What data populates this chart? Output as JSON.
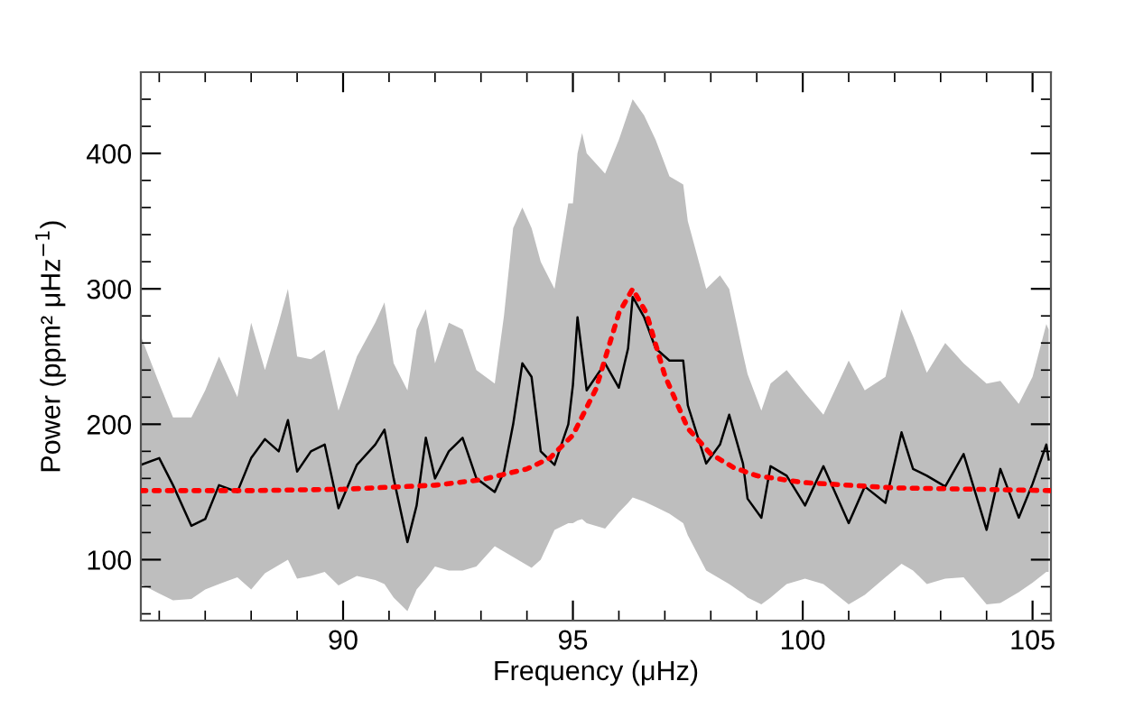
{
  "chart_data": {
    "type": "line",
    "xlabel": "Frequency (μHz)",
    "ylabel": "Power (ppm² μHz$^{−1}$)",
    "xlim": [
      85.6,
      105.4
    ],
    "ylim": [
      55,
      460
    ],
    "xticks": [
      90,
      95,
      100,
      105
    ],
    "yticks": [
      100,
      200,
      300,
      400
    ],
    "grid": false,
    "series": [
      {
        "color": "#000000",
        "line_style": "solid",
        "x": [
          85.6,
          86.0,
          86.3,
          86.7,
          87.0,
          87.3,
          87.7,
          88.0,
          88.3,
          88.6,
          88.8,
          89.0,
          89.3,
          89.6,
          89.9,
          90.3,
          90.7,
          90.9,
          91.1,
          91.4,
          91.6,
          91.8,
          92.0,
          92.3,
          92.6,
          92.9,
          93.3,
          93.5,
          93.7,
          93.9,
          94.1,
          94.3,
          94.6,
          94.9,
          95.0,
          95.1,
          95.2,
          95.3,
          95.7,
          96.0,
          96.2,
          96.3,
          96.55,
          96.8,
          97.1,
          97.4,
          97.5,
          97.9,
          98.2,
          98.4,
          98.7,
          98.8,
          99.1,
          99.3,
          99.65,
          100.05,
          100.45,
          101.0,
          101.35,
          101.8,
          102.15,
          102.4,
          102.7,
          103.1,
          103.5,
          104.0,
          104.3,
          104.7,
          105.0,
          105.3,
          105.35
        ],
        "values": [
          170,
          175,
          155,
          125,
          130,
          155,
          150,
          175,
          189,
          180,
          203,
          165,
          180,
          185,
          138,
          170,
          185,
          196,
          160,
          113,
          140,
          190,
          160,
          180,
          190,
          160,
          150,
          165,
          200,
          245,
          235,
          180,
          170,
          200,
          229,
          279,
          252,
          225,
          245,
          227,
          256,
          294,
          279,
          256,
          247,
          247,
          214,
          171,
          185,
          207,
          171,
          145,
          131,
          169,
          162,
          140,
          169,
          127,
          154,
          142,
          194,
          167,
          162,
          154,
          178,
          122,
          167,
          131,
          156,
          185,
          174
        ],
        "lower": [
          82,
          75,
          70,
          71,
          78,
          82,
          87,
          78,
          90,
          96,
          100,
          86,
          88,
          91,
          81,
          88,
          85,
          82,
          72,
          62,
          78,
          86,
          95,
          92,
          92,
          95,
          110,
          106,
          102,
          98,
          94,
          100,
          122,
          127,
          127,
          129,
          130,
          127,
          123,
          135,
          142,
          146,
          143,
          139,
          134,
          127,
          118,
          92,
          86,
          82,
          75,
          72,
          67,
          72,
          82,
          86,
          82,
          67,
          74,
          87,
          97,
          92,
          82,
          86,
          87,
          67,
          68,
          76,
          83,
          91,
          91
        ],
        "upper": [
          265,
          230,
          205,
          205,
          225,
          250,
          220,
          275,
          240,
          275,
          300,
          250,
          248,
          255,
          210,
          250,
          275,
          290,
          245,
          225,
          270,
          285,
          245,
          275,
          270,
          240,
          230,
          280,
          345,
          360,
          345,
          320,
          300,
          363,
          363,
          400,
          415,
          400,
          385,
          410,
          430,
          440,
          428,
          410,
          383,
          377,
          350,
          300,
          310,
          300,
          252,
          237,
          210,
          230,
          240,
          223,
          207,
          247,
          225,
          235,
          285,
          265,
          238,
          260,
          245,
          230,
          232,
          215,
          235,
          274,
          270
        ]
      },
      {
        "color": "#ff0000",
        "line_style": "dotted",
        "x": [
          85.6,
          88,
          90,
          92,
          93,
          94,
          94.5,
          95,
          95.5,
          96,
          96.3,
          96.6,
          97,
          97.5,
          98,
          98.5,
          99,
          100,
          102,
          105.4
        ],
        "values": [
          151,
          151,
          152,
          155,
          159,
          167,
          175,
          192,
          226,
          282,
          300,
          282,
          236,
          197,
          178,
          168,
          162,
          157,
          153,
          151
        ]
      }
    ]
  }
}
